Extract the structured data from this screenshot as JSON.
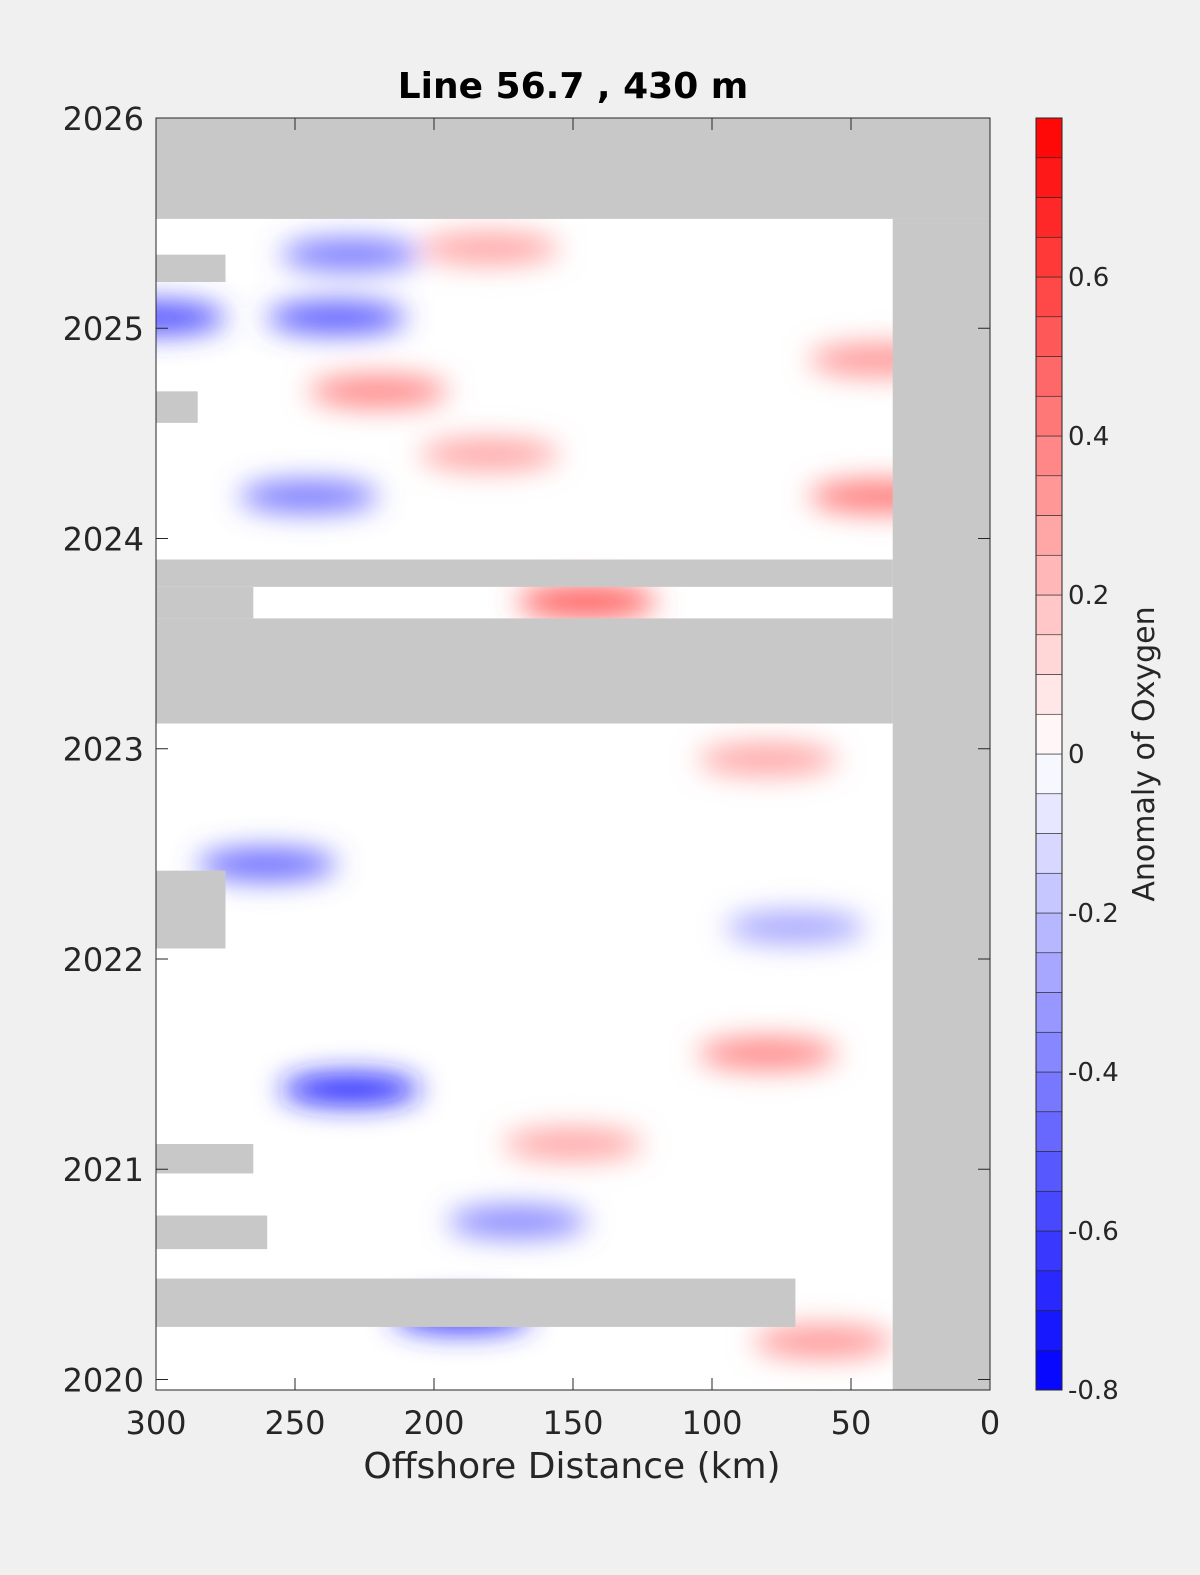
{
  "chart_data": {
    "type": "heatmap",
    "title": "Line 56.7 , 430 m",
    "xlabel": "Offshore Distance (km)",
    "ylabel": "",
    "x_axis": {
      "lim": [
        300,
        0
      ],
      "reversed": true,
      "ticks": [
        300,
        250,
        200,
        150,
        100,
        50,
        0
      ],
      "tick_labels": [
        "300",
        "250",
        "200",
        "150",
        "100",
        "50",
        "0"
      ]
    },
    "y_axis": {
      "lim": [
        2019.95,
        2026
      ],
      "ticks": [
        2020,
        2021,
        2022,
        2023,
        2024,
        2025,
        2026
      ],
      "tick_labels": [
        "2020",
        "2021",
        "2022",
        "2023",
        "2024",
        "2025",
        "2026"
      ]
    },
    "colorbar": {
      "label": "Anomaly of Oxygen",
      "lim": [
        -0.8,
        0.8
      ],
      "levels": 32,
      "ticks": [
        -0.8,
        -0.6,
        -0.4,
        -0.2,
        0,
        0.2,
        0.4,
        0.6
      ],
      "tick_labels": [
        "-0.8",
        "-0.6",
        "-0.4",
        "-0.2",
        "0",
        "0.2",
        "0.4",
        "0.6"
      ],
      "colors": {
        "low": "#0000ff",
        "mid": "#ffffff",
        "high": "#ff0000"
      }
    },
    "missing_color": "#c8c8c8",
    "data_extent": {
      "x": [
        300,
        35
      ],
      "y": [
        2019.95,
        2025.52
      ]
    },
    "nodata_bands": [
      {
        "x": [
          300,
          0
        ],
        "y": [
          2025.52,
          2026
        ]
      },
      {
        "x": [
          35,
          0
        ],
        "y": [
          2019.95,
          2025.52
        ]
      },
      {
        "x": [
          300,
          35
        ],
        "y": [
          2023.12,
          2023.62
        ]
      },
      {
        "x": [
          300,
          35
        ],
        "y": [
          2023.77,
          2023.9
        ]
      },
      {
        "x": [
          300,
          265
        ],
        "y": [
          2023.62,
          2023.77
        ]
      },
      {
        "x": [
          300,
          70
        ],
        "y": [
          2020.25,
          2020.48
        ]
      },
      {
        "x": [
          300,
          275
        ],
        "y": [
          2022.05,
          2022.42
        ]
      },
      {
        "x": [
          300,
          260
        ],
        "y": [
          2020.62,
          2020.78
        ]
      },
      {
        "x": [
          300,
          265
        ],
        "y": [
          2020.98,
          2021.12
        ]
      },
      {
        "x": [
          300,
          285
        ],
        "y": [
          2024.55,
          2024.7
        ]
      },
      {
        "x": [
          300,
          275
        ],
        "y": [
          2025.22,
          2025.35
        ]
      }
    ],
    "anomaly_features": [
      {
        "x": 300,
        "y": 2025.05,
        "value": -0.6
      },
      {
        "x": 235,
        "y": 2025.05,
        "value": -0.55
      },
      {
        "x": 230,
        "y": 2025.35,
        "value": -0.45
      },
      {
        "x": 180,
        "y": 2025.38,
        "value": 0.3
      },
      {
        "x": 40,
        "y": 2024.85,
        "value": 0.35
      },
      {
        "x": 220,
        "y": 2024.7,
        "value": 0.4
      },
      {
        "x": 180,
        "y": 2024.4,
        "value": 0.3
      },
      {
        "x": 40,
        "y": 2024.2,
        "value": 0.45
      },
      {
        "x": 245,
        "y": 2024.2,
        "value": -0.45
      },
      {
        "x": 145,
        "y": 2023.7,
        "value": 0.55
      },
      {
        "x": 260,
        "y": 2022.45,
        "value": -0.5
      },
      {
        "x": 230,
        "y": 2021.38,
        "value": -0.7
      },
      {
        "x": 190,
        "y": 2020.3,
        "value": -0.65
      },
      {
        "x": 60,
        "y": 2020.18,
        "value": 0.35
      },
      {
        "x": 80,
        "y": 2021.55,
        "value": 0.4
      },
      {
        "x": 170,
        "y": 2020.75,
        "value": -0.4
      },
      {
        "x": 150,
        "y": 2021.12,
        "value": 0.3
      },
      {
        "x": 70,
        "y": 2022.15,
        "value": -0.3
      },
      {
        "x": 80,
        "y": 2022.95,
        "value": 0.3
      }
    ]
  }
}
